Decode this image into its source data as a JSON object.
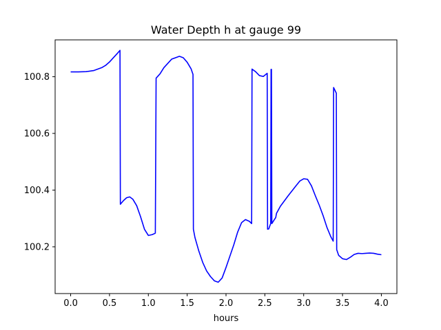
{
  "chart_data": {
    "type": "line",
    "title": "Water Depth h at gauge 99",
    "xlabel": "hours",
    "ylabel": "",
    "xlim": [
      -0.2,
      4.2
    ],
    "ylim": [
      100.035,
      100.93
    ],
    "xticks": [
      0.0,
      0.5,
      1.0,
      1.5,
      2.0,
      2.5,
      3.0,
      3.5,
      4.0
    ],
    "xtick_labels": [
      "0.0",
      "0.5",
      "1.0",
      "1.5",
      "2.0",
      "2.5",
      "3.0",
      "3.5",
      "4.0"
    ],
    "yticks": [
      100.2,
      100.4,
      100.6,
      100.8
    ],
    "ytick_labels": [
      "100.2",
      "100.4",
      "100.6",
      "100.8"
    ],
    "grid": false,
    "series": [
      {
        "color": "#0000ff",
        "points": [
          [
            0.0,
            100.817
          ],
          [
            0.1,
            100.817
          ],
          [
            0.2,
            100.818
          ],
          [
            0.3,
            100.822
          ],
          [
            0.4,
            100.832
          ],
          [
            0.45,
            100.84
          ],
          [
            0.5,
            100.852
          ],
          [
            0.55,
            100.867
          ],
          [
            0.6,
            100.882
          ],
          [
            0.635,
            100.893
          ],
          [
            0.64,
            100.35
          ],
          [
            0.68,
            100.363
          ],
          [
            0.72,
            100.373
          ],
          [
            0.76,
            100.376
          ],
          [
            0.8,
            100.368
          ],
          [
            0.85,
            100.345
          ],
          [
            0.9,
            100.306
          ],
          [
            0.95,
            100.262
          ],
          [
            1.0,
            100.24
          ],
          [
            1.05,
            100.243
          ],
          [
            1.09,
            100.248
          ],
          [
            1.1,
            100.795
          ],
          [
            1.15,
            100.81
          ],
          [
            1.2,
            100.832
          ],
          [
            1.3,
            100.862
          ],
          [
            1.4,
            100.872
          ],
          [
            1.45,
            100.867
          ],
          [
            1.5,
            100.851
          ],
          [
            1.55,
            100.828
          ],
          [
            1.575,
            100.808
          ],
          [
            1.58,
            100.262
          ],
          [
            1.6,
            100.233
          ],
          [
            1.65,
            100.185
          ],
          [
            1.7,
            100.145
          ],
          [
            1.75,
            100.115
          ],
          [
            1.8,
            100.095
          ],
          [
            1.85,
            100.08
          ],
          [
            1.9,
            100.075
          ],
          [
            1.95,
            100.09
          ],
          [
            2.0,
            100.127
          ],
          [
            2.1,
            100.207
          ],
          [
            2.15,
            100.252
          ],
          [
            2.2,
            100.285
          ],
          [
            2.25,
            100.296
          ],
          [
            2.3,
            100.29
          ],
          [
            2.33,
            100.282
          ],
          [
            2.335,
            100.827
          ],
          [
            2.38,
            100.818
          ],
          [
            2.43,
            100.804
          ],
          [
            2.48,
            100.801
          ],
          [
            2.53,
            100.812
          ],
          [
            2.535,
            100.262
          ],
          [
            2.55,
            100.263
          ],
          [
            2.575,
            100.282
          ],
          [
            2.58,
            100.826
          ],
          [
            2.585,
            100.826
          ],
          [
            2.59,
            100.282
          ],
          [
            2.62,
            100.295
          ],
          [
            2.64,
            100.303
          ],
          [
            2.65,
            100.318
          ],
          [
            2.7,
            100.343
          ],
          [
            2.8,
            100.38
          ],
          [
            2.9,
            100.415
          ],
          [
            2.95,
            100.432
          ],
          [
            3.0,
            100.44
          ],
          [
            3.05,
            100.438
          ],
          [
            3.1,
            100.415
          ],
          [
            3.15,
            100.38
          ],
          [
            3.2,
            100.347
          ],
          [
            3.25,
            100.31
          ],
          [
            3.3,
            100.268
          ],
          [
            3.35,
            100.235
          ],
          [
            3.38,
            100.22
          ],
          [
            3.385,
            100.762
          ],
          [
            3.42,
            100.742
          ],
          [
            3.425,
            100.19
          ],
          [
            3.45,
            100.17
          ],
          [
            3.5,
            100.158
          ],
          [
            3.55,
            100.155
          ],
          [
            3.6,
            100.163
          ],
          [
            3.65,
            100.173
          ],
          [
            3.7,
            100.177
          ],
          [
            3.75,
            100.176
          ],
          [
            3.8,
            100.177
          ],
          [
            3.85,
            100.178
          ],
          [
            3.9,
            100.177
          ],
          [
            3.95,
            100.174
          ],
          [
            4.0,
            100.172
          ]
        ]
      }
    ]
  }
}
